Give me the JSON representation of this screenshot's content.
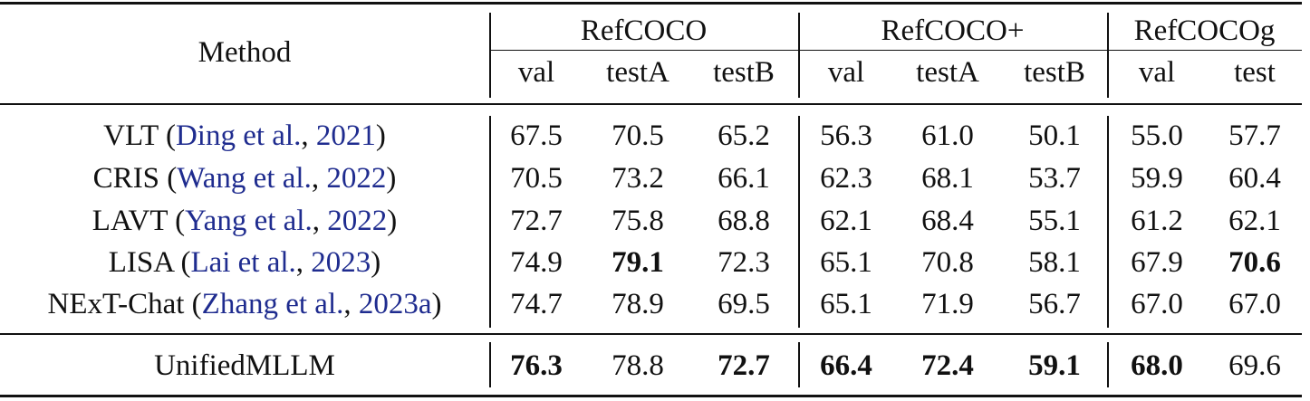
{
  "header": {
    "method": "Method",
    "groups": [
      "RefCOCO",
      "RefCOCO+",
      "RefCOCOg"
    ],
    "subcols": [
      "val",
      "testA",
      "testB",
      "val",
      "testA",
      "testB",
      "val",
      "test"
    ]
  },
  "rows": [
    {
      "name": "VLT (",
      "cite_author": "Ding et al.",
      "sep": ", ",
      "cite_year": "2021",
      "close": ")",
      "values": [
        "67.5",
        "70.5",
        "65.2",
        "56.3",
        "61.0",
        "50.1",
        "55.0",
        "57.7"
      ],
      "bold": []
    },
    {
      "name": "CRIS (",
      "cite_author": "Wang et al.",
      "sep": ", ",
      "cite_year": "2022",
      "close": ")",
      "values": [
        "70.5",
        "73.2",
        "66.1",
        "62.3",
        "68.1",
        "53.7",
        "59.9",
        "60.4"
      ],
      "bold": []
    },
    {
      "name": "LAVT (",
      "cite_author": "Yang et al.",
      "sep": ", ",
      "cite_year": "2022",
      "close": ")",
      "values": [
        "72.7",
        "75.8",
        "68.8",
        "62.1",
        "68.4",
        "55.1",
        "61.2",
        "62.1"
      ],
      "bold": []
    },
    {
      "name": "LISA (",
      "cite_author": "Lai et al.",
      "sep": ", ",
      "cite_year": "2023",
      "close": ")",
      "values": [
        "74.9",
        "79.1",
        "72.3",
        "65.1",
        "70.8",
        "58.1",
        "67.9",
        "70.6"
      ],
      "bold": [
        1,
        7
      ]
    },
    {
      "name": "NExT-Chat (",
      "cite_author": "Zhang et al.",
      "sep": ", ",
      "cite_year": "2023a",
      "close": ")",
      "values": [
        "74.7",
        "78.9",
        "69.5",
        "65.1",
        "71.9",
        "56.7",
        "67.0",
        "67.0"
      ],
      "bold": []
    }
  ],
  "final_row": {
    "name": "UnifiedMLLM",
    "values": [
      "76.3",
      "78.8",
      "72.7",
      "66.4",
      "72.4",
      "59.1",
      "68.0",
      "69.6"
    ],
    "bold": [
      0,
      2,
      3,
      4,
      5,
      6
    ]
  },
  "colors": {
    "citation": "#1f2c8f",
    "text": "#111111"
  }
}
